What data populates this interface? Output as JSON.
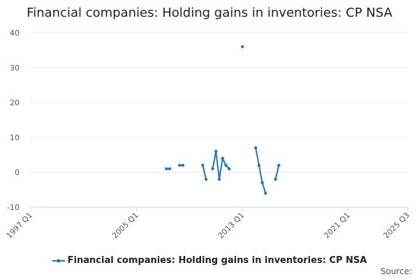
{
  "title": "Financial companies: Holding gains in inventories: CP NSA",
  "source_label": "Source:",
  "colors": {
    "series": "#1f77b4",
    "grid": "#e6e6e6",
    "axis": "#ccd6eb",
    "text": "#555555"
  },
  "chart_data": {
    "type": "line",
    "title": "Financial companies: Holding gains in inventories: CP NSA",
    "xlabel": "",
    "ylabel": "",
    "ylim": [
      -10,
      40
    ],
    "yticks": [
      -10,
      0,
      10,
      20,
      30,
      40
    ],
    "xlim": [
      "1997 Q1",
      "2025 Q3"
    ],
    "xticks": [
      "1997 Q1",
      "2005 Q1",
      "2013 Q1",
      "2021 Q1",
      "2025 Q3"
    ],
    "grid": true,
    "legend": "bottom",
    "series": [
      {
        "name": "Financial companies: Holding gains in inventories: CP NSA",
        "x": [
          "2007 Q2",
          "2007 Q3",
          "2008 Q1",
          "2008 Q2",
          "2008 Q3",
          "2008 Q4",
          "2009 Q1",
          "2009 Q2",
          "2009 Q3",
          "2009 Q4",
          "2010 Q1",
          "2010 Q2",
          "2010 Q3",
          "2010 Q4",
          "2011 Q1",
          "2011 Q2",
          "2011 Q3",
          "2011 Q4",
          "2012 Q1",
          "2012 Q2",
          "2012 Q3",
          "2012 Q4",
          "2013 Q1",
          "2013 Q2",
          "2013 Q3",
          "2013 Q4",
          "2014 Q1",
          "2014 Q2",
          "2014 Q3",
          "2014 Q4",
          "2015 Q1",
          "2015 Q2",
          "2015 Q3",
          "2015 Q4"
        ],
        "values": [
          1,
          1,
          null,
          2,
          2,
          null,
          null,
          null,
          null,
          null,
          2,
          -2,
          null,
          1,
          6,
          -2,
          4,
          2,
          1,
          null,
          null,
          null,
          36,
          null,
          null,
          null,
          7,
          2,
          -3,
          -6,
          null,
          null,
          -2,
          2
        ]
      }
    ]
  }
}
